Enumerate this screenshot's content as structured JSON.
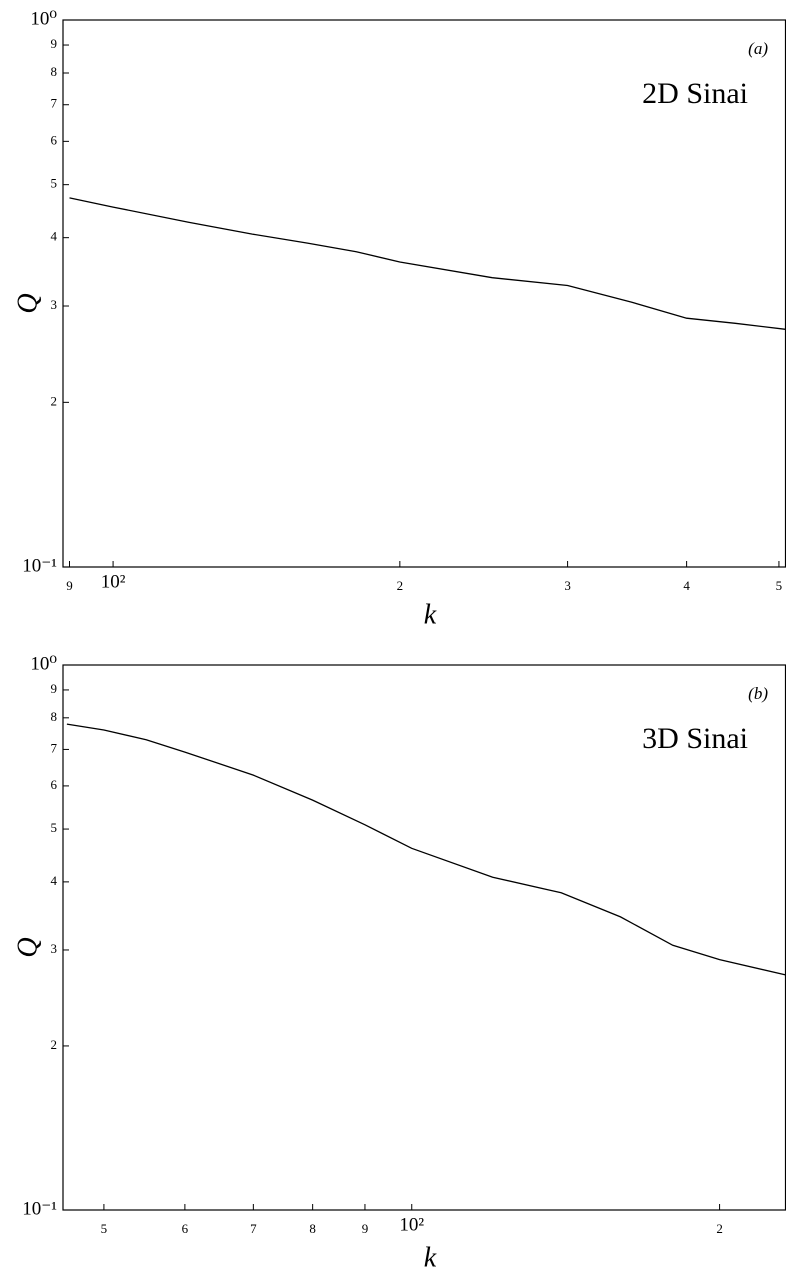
{
  "chart_data": [
    {
      "type": "line",
      "panel_label": "(a)",
      "annotation": "2D Sinai",
      "x_label": "k",
      "y_label": "Q",
      "x_log": true,
      "y_log": true,
      "x": [
        90,
        100,
        120,
        140,
        160,
        180,
        200,
        250,
        300,
        350,
        400,
        450,
        508
      ],
      "series": [
        {
          "color": "#000000",
          "values": [
            0.473,
            0.455,
            0.427,
            0.406,
            0.391,
            0.377,
            0.361,
            0.338,
            0.327,
            0.305,
            0.285,
            0.279,
            0.272
          ]
        }
      ],
      "xlim": [
        88.6,
        508
      ],
      "ylim": [
        0.1,
        1
      ],
      "xticks": [
        {
          "value": 90,
          "label": "9"
        },
        {
          "value": 100,
          "label": "10²"
        },
        {
          "value": 200,
          "label": "2"
        },
        {
          "value": 300,
          "label": "3"
        },
        {
          "value": 400,
          "label": "4"
        },
        {
          "value": 500,
          "label": "5"
        }
      ],
      "yticks": [
        {
          "value": 0.1,
          "label": "10⁻¹"
        },
        {
          "value": 0.2,
          "label": "2"
        },
        {
          "value": 0.3,
          "label": "3"
        },
        {
          "value": 0.4,
          "label": "4"
        },
        {
          "value": 0.5,
          "label": "5"
        },
        {
          "value": 0.6,
          "label": "6"
        },
        {
          "value": 0.7,
          "label": "7"
        },
        {
          "value": 0.8,
          "label": "8"
        },
        {
          "value": 0.9,
          "label": "9"
        },
        {
          "value": 1,
          "label": "10⁰"
        }
      ]
    },
    {
      "type": "line",
      "panel_label": "(b)",
      "annotation": "3D Sinai",
      "x_label": "k",
      "y_label": "Q",
      "x_log": true,
      "y_log": true,
      "x": [
        46,
        50,
        55,
        60,
        70,
        80,
        90,
        100,
        120,
        140,
        160,
        180,
        200,
        232
      ],
      "series": [
        {
          "color": "#000000",
          "values": [
            0.779,
            0.76,
            0.729,
            0.692,
            0.628,
            0.565,
            0.509,
            0.461,
            0.408,
            0.382,
            0.345,
            0.306,
            0.288,
            0.27
          ]
        }
      ],
      "xlim": [
        45.6,
        232
      ],
      "ylim": [
        0.1,
        1
      ],
      "xticks": [
        {
          "value": 50,
          "label": "5"
        },
        {
          "value": 60,
          "label": "6"
        },
        {
          "value": 70,
          "label": "7"
        },
        {
          "value": 80,
          "label": "8"
        },
        {
          "value": 90,
          "label": "9"
        },
        {
          "value": 100,
          "label": "10²"
        },
        {
          "value": 200,
          "label": "2"
        }
      ],
      "yticks": [
        {
          "value": 0.1,
          "label": "10⁻¹"
        },
        {
          "value": 0.2,
          "label": "2"
        },
        {
          "value": 0.3,
          "label": "3"
        },
        {
          "value": 0.4,
          "label": "4"
        },
        {
          "value": 0.5,
          "label": "5"
        },
        {
          "value": 0.6,
          "label": "6"
        },
        {
          "value": 0.7,
          "label": "7"
        },
        {
          "value": 0.8,
          "label": "8"
        },
        {
          "value": 0.9,
          "label": "9"
        },
        {
          "value": 1,
          "label": "10⁰"
        }
      ]
    }
  ]
}
